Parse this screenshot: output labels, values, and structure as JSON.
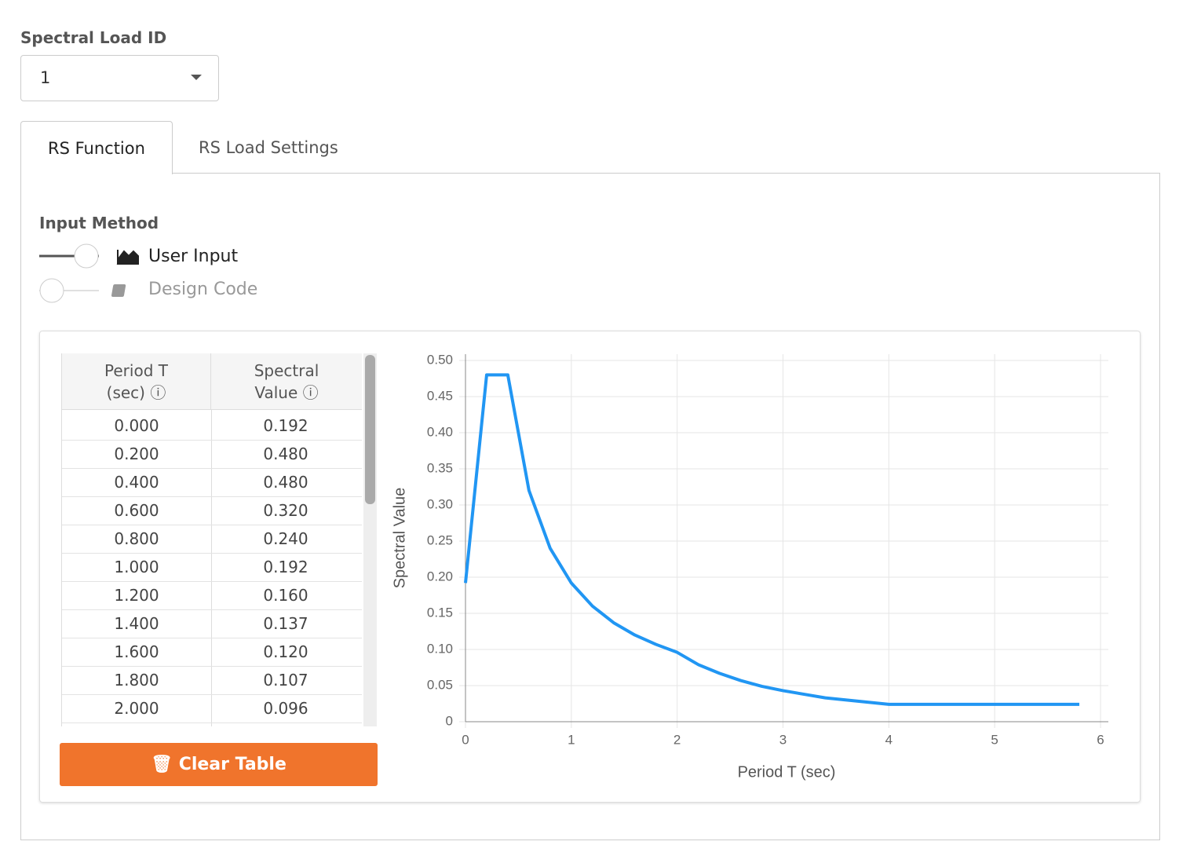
{
  "spectral_load": {
    "label": "Spectral Load ID",
    "value": "1"
  },
  "tabs": [
    "RS Function",
    "RS Load Settings"
  ],
  "input_method": {
    "label": "Input Method",
    "options": [
      "User Input",
      "Design Code"
    ]
  },
  "table": {
    "headers": [
      [
        "Period T",
        "(sec)"
      ],
      [
        "Spectral",
        "Value"
      ]
    ],
    "rows": [
      [
        "0.000",
        "0.192"
      ],
      [
        "0.200",
        "0.480"
      ],
      [
        "0.400",
        "0.480"
      ],
      [
        "0.600",
        "0.320"
      ],
      [
        "0.800",
        "0.240"
      ],
      [
        "1.000",
        "0.192"
      ],
      [
        "1.200",
        "0.160"
      ],
      [
        "1.400",
        "0.137"
      ],
      [
        "1.600",
        "0.120"
      ],
      [
        "1.800",
        "0.107"
      ],
      [
        "2.000",
        "0.096"
      ]
    ]
  },
  "clear_button": "Clear Table",
  "chart_data": {
    "type": "line",
    "xlabel": "Period T (sec)",
    "ylabel": "Spectral Value",
    "x": [
      0,
      0.2,
      0.4,
      0.6,
      0.8,
      1.0,
      1.2,
      1.4,
      1.6,
      1.8,
      2.0,
      2.2,
      2.4,
      2.6,
      2.8,
      3.0,
      3.2,
      3.4,
      3.6,
      3.8,
      4.0,
      5.8
    ],
    "values": [
      0.192,
      0.48,
      0.48,
      0.32,
      0.24,
      0.192,
      0.16,
      0.137,
      0.12,
      0.107,
      0.096,
      0.079,
      0.067,
      0.057,
      0.049,
      0.043,
      0.038,
      0.033,
      0.03,
      0.027,
      0.024,
      0.024
    ],
    "color": "#2196f3",
    "xlim": [
      0,
      6
    ],
    "xticks": [
      0,
      1,
      2,
      3,
      4,
      5,
      6
    ],
    "ylim": [
      0,
      0.5
    ],
    "yticks": [
      0,
      0.05,
      {
        "value": 0.1,
        "label": "0.10"
      },
      0.15,
      {
        "value": 0.2,
        "label": "0.20"
      },
      0.25,
      {
        "value": 0.3,
        "label": "0.30"
      },
      0.35,
      {
        "value": 0.4,
        "label": "0.40"
      },
      0.45,
      {
        "value": 0.5,
        "label": "0.50"
      }
    ],
    "grid": true
  }
}
